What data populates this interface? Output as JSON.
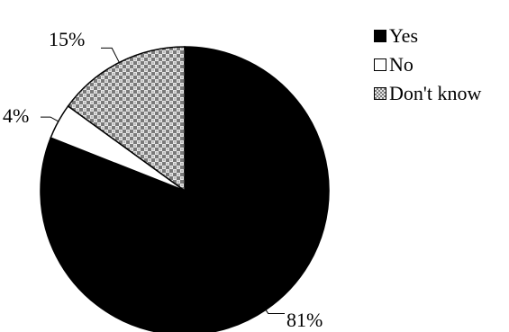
{
  "chart_data": {
    "type": "pie",
    "slices": [
      {
        "label": "Yes",
        "value": 81,
        "display": "81%",
        "color": "#000000",
        "pattern": "solid"
      },
      {
        "label": "No",
        "value": 4,
        "display": "4%",
        "color": "#ffffff",
        "pattern": "none"
      },
      {
        "label": "Don't know",
        "value": 15,
        "display": "15%",
        "color": "#9a9a9a",
        "pattern": "checkered"
      }
    ],
    "start_angle": "12 o'clock",
    "direction": "clockwise",
    "legend_position": "top-right",
    "title": ""
  }
}
